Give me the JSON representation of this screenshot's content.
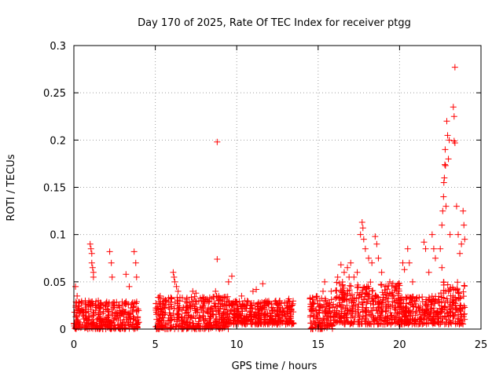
{
  "chart_data": {
    "type": "scatter",
    "title": "Day 170 of 2025, Rate Of TEC Index for receiver ptgg",
    "xlabel": "GPS time / hours",
    "ylabel": "ROTI / TECUs",
    "xlim": [
      0,
      25
    ],
    "ylim": [
      0,
      0.3
    ],
    "xticks": [
      "0",
      "5",
      "10",
      "15",
      "20",
      "25"
    ],
    "yticks": [
      "0",
      "0.05",
      "0.1",
      "0.15",
      "0.2",
      "0.25",
      "0.3"
    ],
    "grid": true,
    "marker": "+",
    "color": "#ff0000",
    "series": [
      {
        "points": [
          [
            0.1,
            0.045
          ],
          [
            0.2,
            0.035
          ],
          [
            0.3,
            0.025
          ],
          [
            0.5,
            0.02
          ],
          [
            0.7,
            0.03
          ],
          [
            1.0,
            0.09
          ],
          [
            1.05,
            0.085
          ],
          [
            1.1,
            0.08
          ],
          [
            1.1,
            0.07
          ],
          [
            1.15,
            0.065
          ],
          [
            1.2,
            0.06
          ],
          [
            1.2,
            0.055
          ],
          [
            1.5,
            0.03
          ],
          [
            1.8,
            0.025
          ],
          [
            2.2,
            0.082
          ],
          [
            2.3,
            0.07
          ],
          [
            2.35,
            0.055
          ],
          [
            3.2,
            0.058
          ],
          [
            3.4,
            0.045
          ],
          [
            3.7,
            0.082
          ],
          [
            3.8,
            0.07
          ],
          [
            3.85,
            0.055
          ],
          [
            5.3,
            0.035
          ],
          [
            5.6,
            0.03
          ],
          [
            6.1,
            0.06
          ],
          [
            6.15,
            0.055
          ],
          [
            6.2,
            0.05
          ],
          [
            6.3,
            0.045
          ],
          [
            6.4,
            0.04
          ],
          [
            7.3,
            0.04
          ],
          [
            7.5,
            0.038
          ],
          [
            8.2,
            0.03
          ],
          [
            8.8,
            0.198
          ],
          [
            8.8,
            0.074
          ],
          [
            8.7,
            0.04
          ],
          [
            8.9,
            0.035
          ],
          [
            9.5,
            0.05
          ],
          [
            9.7,
            0.056
          ],
          [
            10.3,
            0.035
          ],
          [
            10.5,
            0.03
          ],
          [
            11.0,
            0.04
          ],
          [
            11.2,
            0.042
          ],
          [
            11.6,
            0.048
          ],
          [
            12.4,
            0.03
          ],
          [
            12.6,
            0.028
          ],
          [
            13.2,
            0.032
          ],
          [
            14.5,
            0.032
          ],
          [
            15.1,
            0.03
          ],
          [
            15.3,
            0.04
          ],
          [
            15.4,
            0.05
          ],
          [
            15.8,
            0.04
          ],
          [
            16.2,
            0.055
          ],
          [
            16.4,
            0.068
          ],
          [
            16.6,
            0.06
          ],
          [
            16.8,
            0.065
          ],
          [
            16.9,
            0.055
          ],
          [
            17.0,
            0.07
          ],
          [
            17.2,
            0.055
          ],
          [
            17.4,
            0.06
          ],
          [
            17.6,
            0.1
          ],
          [
            17.7,
            0.113
          ],
          [
            17.75,
            0.107
          ],
          [
            17.8,
            0.095
          ],
          [
            17.9,
            0.085
          ],
          [
            18.1,
            0.075
          ],
          [
            18.3,
            0.07
          ],
          [
            18.5,
            0.098
          ],
          [
            18.6,
            0.09
          ],
          [
            18.7,
            0.075
          ],
          [
            18.9,
            0.06
          ],
          [
            19.4,
            0.05
          ],
          [
            19.8,
            0.045
          ],
          [
            20.2,
            0.07
          ],
          [
            20.3,
            0.063
          ],
          [
            20.5,
            0.085
          ],
          [
            20.6,
            0.07
          ],
          [
            20.8,
            0.05
          ],
          [
            21.5,
            0.092
          ],
          [
            21.6,
            0.085
          ],
          [
            21.8,
            0.06
          ],
          [
            22.0,
            0.1
          ],
          [
            22.1,
            0.085
          ],
          [
            22.2,
            0.075
          ],
          [
            22.5,
            0.085
          ],
          [
            22.6,
            0.065
          ],
          [
            22.6,
            0.11
          ],
          [
            22.65,
            0.125
          ],
          [
            22.7,
            0.14
          ],
          [
            22.72,
            0.155
          ],
          [
            22.75,
            0.16
          ],
          [
            22.78,
            0.174
          ],
          [
            22.8,
            0.19
          ],
          [
            22.82,
            0.173
          ],
          [
            22.85,
            0.13
          ],
          [
            22.9,
            0.22
          ],
          [
            22.95,
            0.205
          ],
          [
            23.0,
            0.18
          ],
          [
            23.05,
            0.2
          ],
          [
            23.1,
            0.1
          ],
          [
            23.3,
            0.235
          ],
          [
            23.35,
            0.225
          ],
          [
            23.4,
            0.197
          ],
          [
            23.35,
            0.199
          ],
          [
            23.4,
            0.277
          ],
          [
            23.5,
            0.13
          ],
          [
            23.6,
            0.1
          ],
          [
            23.7,
            0.08
          ],
          [
            23.8,
            0.09
          ],
          [
            23.9,
            0.125
          ],
          [
            23.95,
            0.11
          ],
          [
            24.0,
            0.095
          ]
        ]
      }
    ],
    "dense_regions": [
      {
        "x_range": [
          0.0,
          4.0
        ],
        "y_range": [
          0.0,
          0.03
        ]
      },
      {
        "x_range": [
          5.0,
          9.5
        ],
        "y_range": [
          0.0,
          0.035
        ]
      },
      {
        "x_range": [
          9.5,
          13.5
        ],
        "y_range": [
          0.005,
          0.03
        ]
      },
      {
        "x_range": [
          14.5,
          16.0
        ],
        "y_range": [
          0.0,
          0.035
        ]
      },
      {
        "x_range": [
          16.0,
          20.0
        ],
        "y_range": [
          0.005,
          0.05
        ]
      },
      {
        "x_range": [
          20.0,
          22.5
        ],
        "y_range": [
          0.005,
          0.035
        ]
      },
      {
        "x_range": [
          22.5,
          24.0
        ],
        "y_range": [
          0.005,
          0.05
        ]
      }
    ]
  }
}
